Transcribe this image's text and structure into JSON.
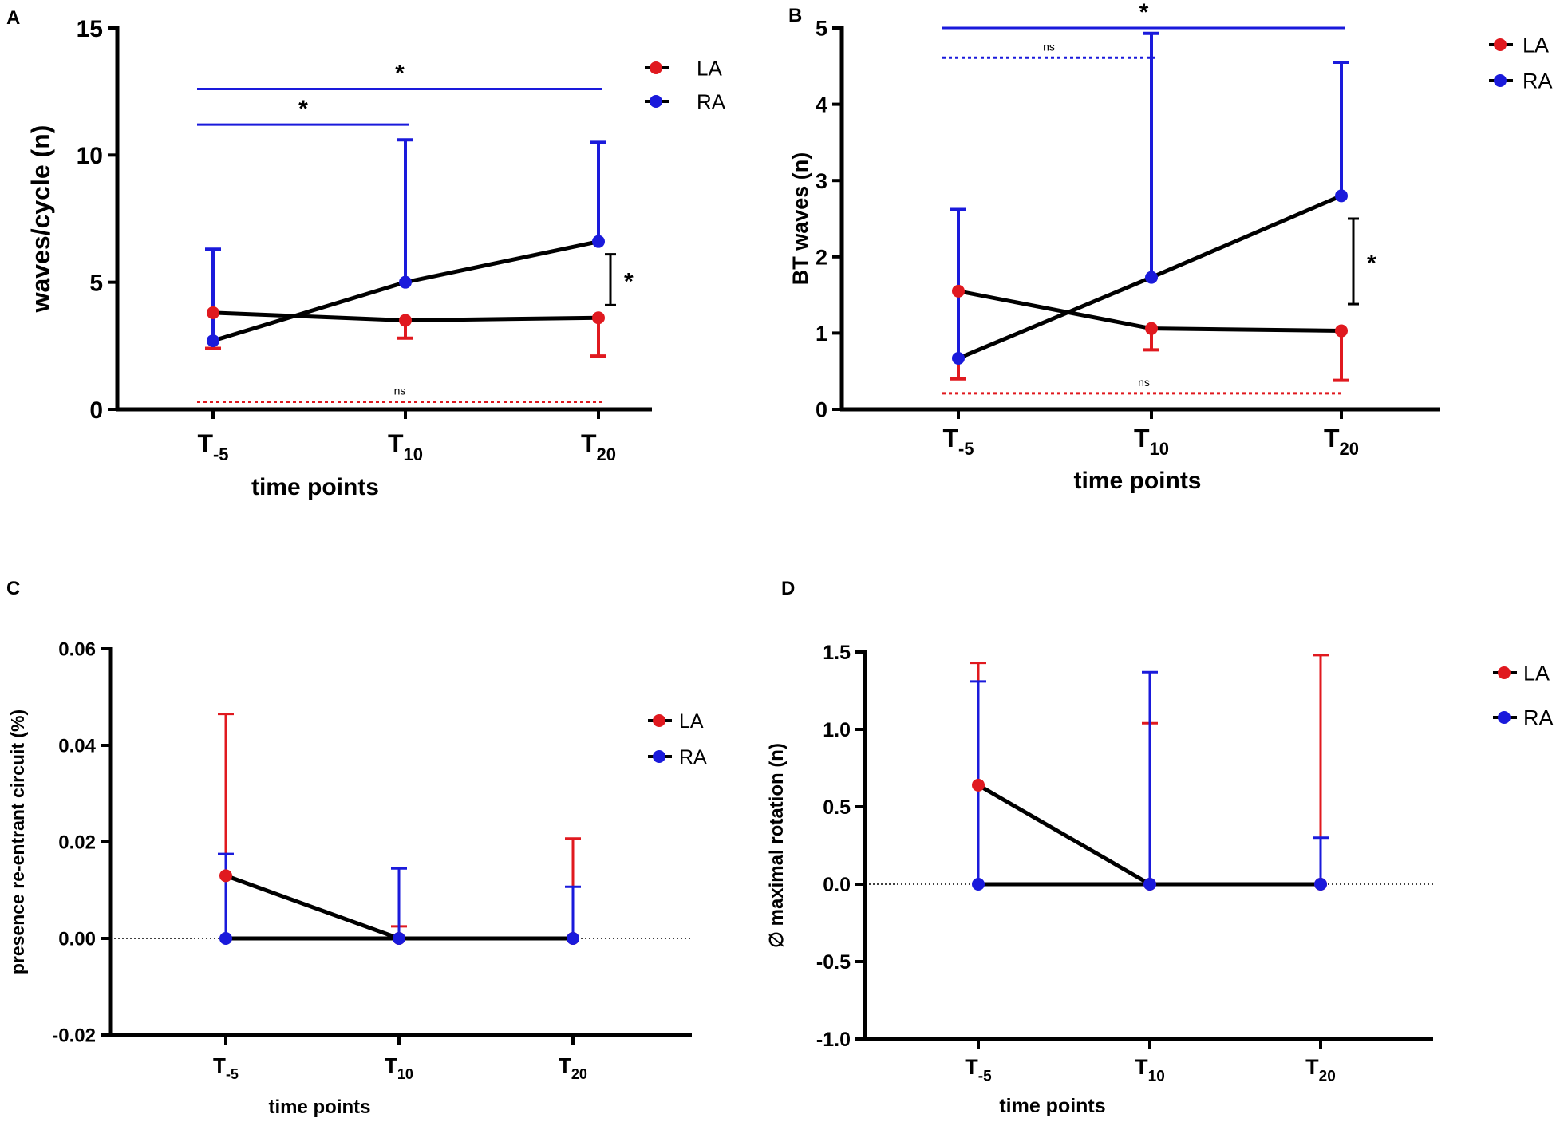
{
  "chart_data": [
    {
      "panel": "A",
      "type": "line",
      "categories": [
        {
          "base": "T",
          "sub": "-5"
        },
        {
          "base": "T",
          "sub": "10"
        },
        {
          "base": "T",
          "sub": "20"
        }
      ],
      "xlabel": "time points",
      "ylabel": "waves/cycle (n)",
      "ylim": [
        0,
        15
      ],
      "yticks": [
        "0",
        "5",
        "10",
        "15"
      ],
      "series": [
        {
          "name": "LA",
          "color": "#e0191f",
          "values": [
            3.8,
            3.5,
            3.6
          ],
          "error": [
            {
              "dir": "down",
              "bound": 2.4
            },
            {
              "dir": "down",
              "bound": 2.8
            },
            {
              "dir": "down",
              "bound": 2.1
            }
          ]
        },
        {
          "name": "RA",
          "color": "#1a1adb",
          "values": [
            2.7,
            5.0,
            6.6
          ],
          "error": [
            {
              "dir": "up",
              "bound": 6.3
            },
            {
              "dir": "up",
              "bound": 10.6
            },
            {
              "dir": "up",
              "bound": 10.5
            }
          ]
        }
      ],
      "legend": {
        "position": "top-right"
      },
      "annotations": [
        {
          "kind": "hbar",
          "from": 0,
          "to": 2,
          "y": 12.6,
          "color": "#1a1adb",
          "label": "*",
          "style": "solid",
          "text_pos": "above"
        },
        {
          "kind": "hbar",
          "from": 0,
          "to": 1,
          "y": 11.2,
          "color": "#1a1adb",
          "label": "*",
          "style": "solid",
          "text_pos": "above"
        },
        {
          "kind": "hbar",
          "from": 0,
          "to": 2,
          "y": 0.3,
          "color": "#e0191f",
          "label": "ns",
          "style": "dotted",
          "text_pos": "above"
        },
        {
          "kind": "vbracket",
          "at": 2,
          "y1": 4.1,
          "y2": 6.1,
          "color": "#000000",
          "label": "*"
        }
      ]
    },
    {
      "panel": "B",
      "type": "line",
      "categories": [
        {
          "base": "T",
          "sub": "-5"
        },
        {
          "base": "T",
          "sub": "10"
        },
        {
          "base": "T",
          "sub": "20"
        }
      ],
      "xlabel": "time points",
      "ylabel": "BT waves (n)",
      "ylim": [
        0,
        5
      ],
      "yticks": [
        "0",
        "1",
        "2",
        "3",
        "4",
        "5"
      ],
      "series": [
        {
          "name": "LA",
          "color": "#e0191f",
          "values": [
            1.55,
            1.06,
            1.03
          ],
          "error": [
            {
              "dir": "down",
              "bound": 0.4
            },
            {
              "dir": "down",
              "bound": 0.78
            },
            {
              "dir": "down",
              "bound": 0.38
            }
          ]
        },
        {
          "name": "RA",
          "color": "#1a1adb",
          "values": [
            0.67,
            1.73,
            2.8
          ],
          "error": [
            {
              "dir": "up",
              "bound": 2.62
            },
            {
              "dir": "up",
              "bound": 4.93
            },
            {
              "dir": "up",
              "bound": 4.55
            }
          ]
        }
      ],
      "legend": {
        "position": "top-right"
      },
      "annotations": [
        {
          "kind": "hbar",
          "from": 0,
          "to": 2,
          "y": 5.0,
          "color": "#1a1adb",
          "label": "*",
          "style": "solid",
          "text_pos": "above"
        },
        {
          "kind": "hbar",
          "from": 0,
          "to": 1,
          "y": 4.61,
          "color": "#1a1adb",
          "label": "ns",
          "style": "dotted",
          "text_pos": "above"
        },
        {
          "kind": "hbar",
          "from": 0,
          "to": 2,
          "y": 0.21,
          "color": "#e0191f",
          "label": "ns",
          "style": "dotted",
          "text_pos": "above"
        },
        {
          "kind": "vbracket",
          "at": 2,
          "y1": 1.38,
          "y2": 2.5,
          "color": "#000000",
          "label": "*"
        }
      ]
    },
    {
      "panel": "C",
      "type": "line",
      "categories": [
        {
          "base": "T",
          "sub": "-5"
        },
        {
          "base": "T",
          "sub": "10"
        },
        {
          "base": "T",
          "sub": "20"
        }
      ],
      "xlabel": "time points",
      "ylabel": "presence re-entrant circuit (%)",
      "ylim": [
        -0.02,
        0.06
      ],
      "yticks": [
        "-0.02",
        "0.00",
        "0.02",
        "0.04",
        "0.06"
      ],
      "series": [
        {
          "name": "LA",
          "color": "#e0191f",
          "values": [
            0.013,
            0.0,
            0.0
          ],
          "error": [
            {
              "dir": "up",
              "bound": 0.0465
            },
            {
              "dir": "up",
              "bound": 0.0025
            },
            {
              "dir": "up",
              "bound": 0.0207
            }
          ]
        },
        {
          "name": "RA",
          "color": "#1a1adb",
          "values": [
            0.0,
            0.0,
            0.0
          ],
          "error": [
            {
              "dir": "up",
              "bound": 0.0175
            },
            {
              "dir": "up",
              "bound": 0.0145
            },
            {
              "dir": "up",
              "bound": 0.0107
            }
          ]
        }
      ],
      "legend": {
        "position": "right"
      },
      "annotations": [],
      "zero_line": true
    },
    {
      "panel": "D",
      "type": "line",
      "categories": [
        {
          "base": "T",
          "sub": "-5"
        },
        {
          "base": "T",
          "sub": "10"
        },
        {
          "base": "T",
          "sub": "20"
        }
      ],
      "xlabel": "time points",
      "ylabel": "∅ maximal rotation (n)",
      "ylim": [
        -1.0,
        1.5
      ],
      "yticks": [
        "-1.0",
        "-0.5",
        "0.0",
        "0.5",
        "1.0",
        "1.5"
      ],
      "series": [
        {
          "name": "LA",
          "color": "#e0191f",
          "values": [
            0.64,
            0.0,
            0.0
          ],
          "error": [
            {
              "dir": "up",
              "bound": 1.43
            },
            {
              "dir": "up",
              "bound": 1.04
            },
            {
              "dir": "up",
              "bound": 1.48
            }
          ]
        },
        {
          "name": "RA",
          "color": "#1a1adb",
          "values": [
            0.0,
            0.0,
            0.0
          ],
          "error": [
            {
              "dir": "up",
              "bound": 1.31
            },
            {
              "dir": "up",
              "bound": 1.37
            },
            {
              "dir": "up",
              "bound": 0.3
            }
          ]
        }
      ],
      "legend": {
        "position": "top-right"
      },
      "annotations": [],
      "zero_line": true
    }
  ]
}
